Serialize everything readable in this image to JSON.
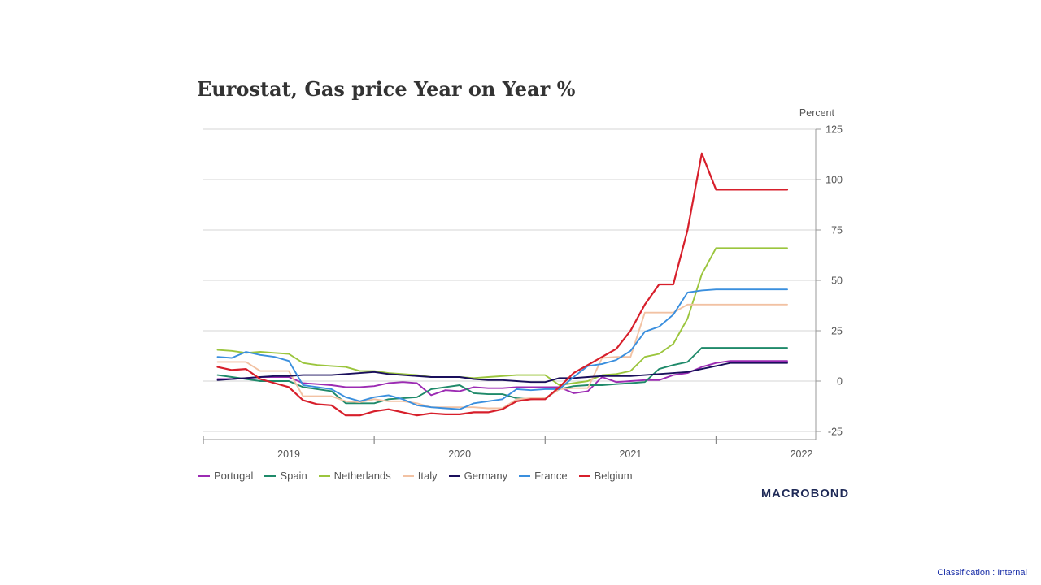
{
  "chart_data": {
    "type": "line",
    "title": "Eurostat, Gas price Year on Year %",
    "ylabel": "Percent",
    "xlabel": "",
    "ylim": [
      -25,
      125
    ],
    "yticks": [
      125,
      100,
      75,
      50,
      25,
      0,
      -25
    ],
    "xlim": [
      "2018-07",
      "2022-02"
    ],
    "xticks": [
      {
        "label": "2019",
        "x": "2019-01"
      },
      {
        "label": "2020",
        "x": "2020-01"
      },
      {
        "label": "2021",
        "x": "2021-01"
      },
      {
        "label": "2022",
        "x": "2022-01"
      }
    ],
    "grid": true,
    "legend_position": "bottom",
    "x": [
      "2018-08",
      "2018-09",
      "2018-10",
      "2018-11",
      "2018-12",
      "2019-01",
      "2019-02",
      "2019-03",
      "2019-04",
      "2019-05",
      "2019-06",
      "2019-07",
      "2019-08",
      "2019-09",
      "2019-10",
      "2019-11",
      "2019-12",
      "2020-01",
      "2020-02",
      "2020-03",
      "2020-04",
      "2020-05",
      "2020-06",
      "2020-07",
      "2020-08",
      "2020-09",
      "2020-10",
      "2020-11",
      "2020-12",
      "2021-01",
      "2021-02",
      "2021-03",
      "2021-04",
      "2021-05",
      "2021-06",
      "2021-07",
      "2021-08",
      "2021-09",
      "2021-10",
      "2021-11",
      "2021-12"
    ],
    "series": [
      {
        "name": "Portugal",
        "color": "#9c2bb3",
        "values": [
          1,
          1,
          1.5,
          2,
          2,
          2,
          -1,
          -1.5,
          -2,
          -3,
          -3,
          -2.5,
          -1,
          -0.5,
          -1,
          -7,
          -4.5,
          -5,
          -3,
          -3.5,
          -3.5,
          -3,
          -3,
          -3,
          -3,
          -6,
          -5,
          2,
          -0.5,
          0,
          0.5,
          0.5,
          3,
          4,
          7,
          9,
          10,
          10,
          10,
          10,
          10
        ]
      },
      {
        "name": "Spain",
        "color": "#1f8a6a",
        "values": [
          3,
          2,
          1,
          0,
          0,
          0,
          -3,
          -4,
          -5,
          -11,
          -11,
          -11,
          -9,
          -8.5,
          -8,
          -4,
          -3,
          -2,
          -6,
          -6.5,
          -6.5,
          -8.5,
          -9,
          -8.5,
          -4,
          -2.5,
          -2,
          -2,
          -1.5,
          -1,
          -0.5,
          6,
          8,
          9.5,
          16.5,
          16.5,
          16.5,
          16.5,
          16.5,
          16.5,
          16.5
        ]
      },
      {
        "name": "Netherlands",
        "color": "#9bc53d",
        "values": [
          15.5,
          15,
          14,
          14.5,
          14,
          13.5,
          9,
          8,
          7.5,
          7,
          5,
          5,
          4,
          3.5,
          3,
          2,
          2,
          2,
          1.5,
          2,
          2.5,
          3,
          3,
          3,
          -2,
          -1,
          0,
          3,
          3.5,
          5,
          12,
          13.5,
          18.5,
          31,
          53,
          66,
          66,
          66,
          66,
          66,
          66
        ]
      },
      {
        "name": "Italy",
        "color": "#f2c2a3",
        "values": [
          9.5,
          9.5,
          9.5,
          5,
          5,
          5,
          -7.5,
          -7.5,
          -7.5,
          -10,
          -10.5,
          -9,
          -10,
          -10,
          -11,
          -13,
          -13,
          -13,
          -13,
          -13.5,
          -13.5,
          -9,
          -8.5,
          -8.5,
          -4,
          -3.5,
          -3.5,
          11.5,
          12,
          12,
          34,
          34,
          34,
          38,
          38,
          38,
          38,
          38,
          38,
          38,
          38
        ]
      },
      {
        "name": "Germany",
        "color": "#1a0f5c",
        "values": [
          0.5,
          1,
          1.5,
          2,
          2.5,
          2.5,
          3,
          3,
          3,
          3.5,
          4,
          4.5,
          3.5,
          3,
          2.5,
          2,
          2,
          2,
          1,
          0.5,
          0.5,
          0,
          -0.5,
          -0.5,
          1.5,
          1.5,
          2,
          2.5,
          2.5,
          2.5,
          3,
          3.5,
          4,
          4.5,
          6,
          7.5,
          9,
          9,
          9,
          9,
          9
        ]
      },
      {
        "name": "France",
        "color": "#3a8fde",
        "values": [
          12,
          11.5,
          14.5,
          13,
          12,
          10,
          -2,
          -3,
          -4,
          -8,
          -10,
          -8,
          -7,
          -9,
          -12,
          -13,
          -13.5,
          -14,
          -11,
          -10,
          -9,
          -4,
          -4.5,
          -4,
          -4,
          2,
          7.5,
          8.5,
          10.5,
          15,
          24.5,
          27,
          33,
          44,
          45,
          45.5,
          45.5,
          45.5,
          45.5,
          45.5,
          45.5
        ]
      },
      {
        "name": "Belgium",
        "color": "#d71f2b",
        "values": [
          7,
          5.5,
          6,
          1,
          -1,
          -3,
          -9.5,
          -11.5,
          -12,
          -17,
          -17,
          -15,
          -14,
          -15.5,
          -17,
          -16,
          -16.5,
          -16.5,
          -15.5,
          -15.5,
          -14,
          -10,
          -9,
          -9,
          -3,
          4,
          8,
          12,
          16,
          25,
          38,
          48,
          48,
          75,
          113,
          95,
          95,
          95,
          95,
          95,
          95
        ]
      }
    ],
    "annotations": []
  },
  "branding": {
    "logo_text": "MACROBOND"
  },
  "footer": {
    "classification": "Classification : Internal"
  }
}
